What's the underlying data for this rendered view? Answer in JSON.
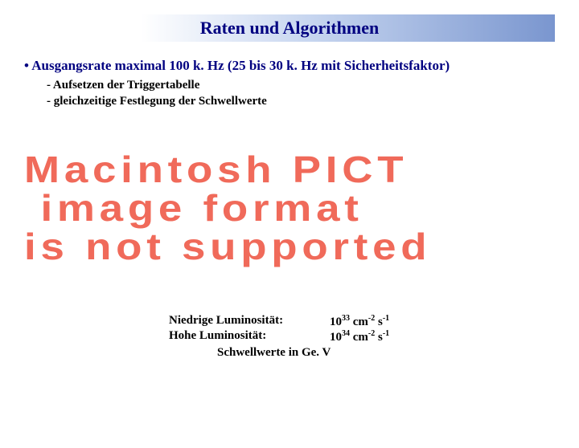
{
  "title": "Raten und Algorithmen",
  "bullet": "• Ausgangsrate maximal 100 k. Hz (25 bis 30 k. Hz mit Sicherheitsfaktor)",
  "sub1": "- Aufsetzen der Triggertabelle",
  "sub2": "- gleichzeitige Festlegung der Schwellwerte",
  "pict": {
    "line1": "Macintosh PICT",
    "line2": " image format",
    "line3": "is not supported"
  },
  "luminosity": {
    "low_label": "Niedrige Luminosität:",
    "low_base": "10",
    "low_exp": "33",
    "low_unit1": " cm",
    "low_unit1_exp": "-2",
    "low_unit2": " s",
    "low_unit2_exp": "-1",
    "high_label": "Hohe Luminosität:",
    "high_base": "10",
    "high_exp": "34",
    "high_unit1": " cm",
    "high_unit1_exp": "-2",
    "high_unit2": " s",
    "high_unit2_exp": "-1",
    "footer": "Schwellwerte in Ge. V"
  },
  "colors": {
    "title_text": "#000080",
    "bullet_text": "#000080",
    "body_text": "#000000",
    "pict_text": "#f06a5a",
    "background": "#ffffff"
  }
}
